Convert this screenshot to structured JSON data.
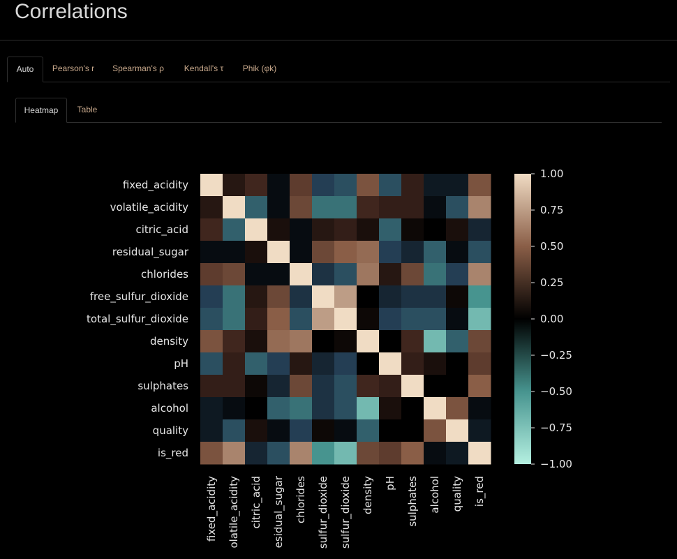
{
  "page": {
    "title": "Correlations"
  },
  "tabs_primary": [
    {
      "label": "Auto",
      "active": true
    },
    {
      "label": "Pearson's r",
      "active": false
    },
    {
      "label": "Spearman's ρ",
      "active": false
    },
    {
      "label": "Kendall's τ",
      "active": false
    },
    {
      "label": "Phik (φk)",
      "active": false
    }
  ],
  "tabs_secondary": [
    {
      "label": "Heatmap",
      "active": true
    },
    {
      "label": "Table",
      "active": false
    }
  ],
  "colors": {
    "tab_inactive": "#c9a98c",
    "tab_active": "#d9d9d9",
    "background": "#000000"
  },
  "chart_data": {
    "type": "heatmap",
    "colormap": "diverging: teal (-1) → black (0) → beige (+1)",
    "labels": [
      "fixed_acidity",
      "volatile_acidity",
      "citric_acid",
      "residual_sugar",
      "chlorides",
      "free_sulfur_dioxide",
      "total_sulfur_dioxide",
      "density",
      "pH",
      "sulphates",
      "alcohol",
      "quality",
      "is_red"
    ],
    "x_tick_labels": [
      "fixed_acidity",
      "olatile_acidity",
      "citric_acid",
      "esidual_sugar",
      "chlorides",
      "sulfur_dioxide",
      "sulfur_dioxide",
      "density",
      "pH",
      "sulphates",
      "alcohol",
      "quality",
      "is_red"
    ],
    "matrix": [
      [
        1.0,
        0.15,
        0.25,
        -0.05,
        0.35,
        -0.25,
        -0.3,
        0.45,
        -0.3,
        0.2,
        -0.1,
        -0.1,
        0.45
      ],
      [
        0.15,
        1.0,
        -0.35,
        -0.05,
        0.4,
        -0.4,
        -0.4,
        0.25,
        0.2,
        0.2,
        -0.05,
        -0.3,
        0.65
      ],
      [
        0.25,
        -0.35,
        1.0,
        0.1,
        -0.05,
        0.15,
        0.2,
        0.1,
        -0.35,
        0.05,
        0.0,
        0.1,
        -0.15
      ],
      [
        -0.05,
        -0.05,
        0.1,
        1.0,
        -0.05,
        0.4,
        0.5,
        0.55,
        -0.25,
        -0.15,
        -0.35,
        -0.05,
        -0.3
      ],
      [
        0.35,
        0.4,
        -0.05,
        -0.05,
        1.0,
        -0.2,
        -0.3,
        0.6,
        0.15,
        0.4,
        -0.4,
        -0.25,
        0.65
      ],
      [
        -0.25,
        -0.4,
        0.15,
        0.4,
        -0.2,
        1.0,
        0.75,
        0.0,
        -0.15,
        -0.2,
        -0.2,
        0.05,
        -0.5
      ],
      [
        -0.3,
        -0.4,
        0.2,
        0.5,
        -0.3,
        0.75,
        1.0,
        0.05,
        -0.25,
        -0.3,
        -0.3,
        -0.05,
        -0.7
      ],
      [
        0.45,
        0.25,
        0.1,
        0.55,
        0.6,
        0.0,
        0.05,
        1.0,
        0.0,
        0.25,
        -0.7,
        -0.35,
        0.4
      ],
      [
        -0.3,
        0.2,
        -0.35,
        -0.25,
        0.15,
        -0.15,
        -0.25,
        0.0,
        1.0,
        0.2,
        0.1,
        0.0,
        0.35
      ],
      [
        0.2,
        0.2,
        0.05,
        -0.15,
        0.4,
        -0.2,
        -0.3,
        0.25,
        0.2,
        1.0,
        0.0,
        0.0,
        0.5
      ],
      [
        -0.1,
        -0.05,
        0.0,
        -0.35,
        -0.4,
        -0.2,
        -0.3,
        -0.7,
        0.1,
        0.0,
        1.0,
        0.45,
        -0.05
      ],
      [
        -0.1,
        -0.3,
        0.1,
        -0.05,
        -0.25,
        0.05,
        -0.05,
        -0.35,
        0.0,
        0.0,
        0.45,
        1.0,
        -0.1
      ],
      [
        0.45,
        0.65,
        -0.15,
        -0.3,
        0.65,
        -0.5,
        -0.7,
        0.4,
        0.35,
        0.5,
        -0.05,
        -0.1,
        1.0
      ]
    ],
    "colorbar": {
      "range": [
        -1.0,
        1.0
      ],
      "ticks": [
        "1.00",
        "0.75",
        "0.50",
        "0.25",
        "0.00",
        "−0.25",
        "−0.50",
        "−0.75",
        "−1.00"
      ]
    }
  }
}
